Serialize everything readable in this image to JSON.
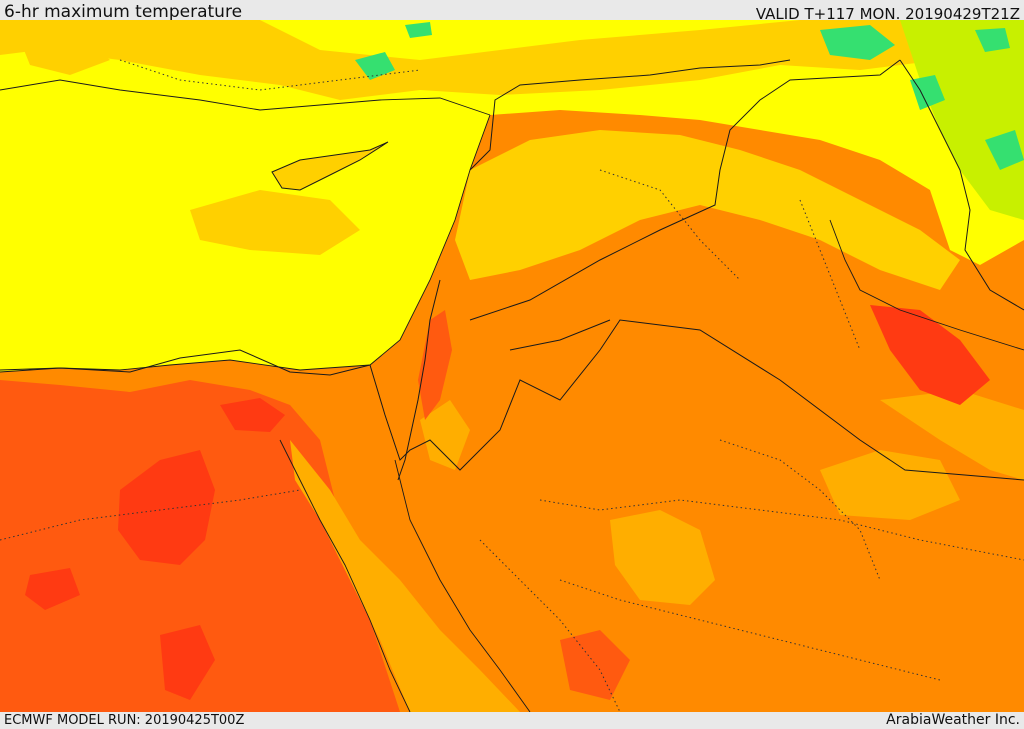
{
  "header": {
    "title": "6-hr maximum temperature",
    "valid_time": "VALID T+117 MON. 20190429T21Z"
  },
  "footer": {
    "model_run": "ECMWF MODEL RUN: 20190425T00Z",
    "credit": "ArabiaWeather Inc."
  },
  "map": {
    "variable": "6-hr maximum temperature",
    "palette": {
      "hottest": "#ff3a12",
      "very_hot": "#ff5a10",
      "hot": "#ff8a00",
      "warm": "#ffae00",
      "mild": "#ffd000",
      "cool": "#ffff00",
      "cooler": "#c8f000",
      "cold": "#35e070",
      "border_line": "#1a1a1a",
      "admin_line": "#333333"
    }
  }
}
